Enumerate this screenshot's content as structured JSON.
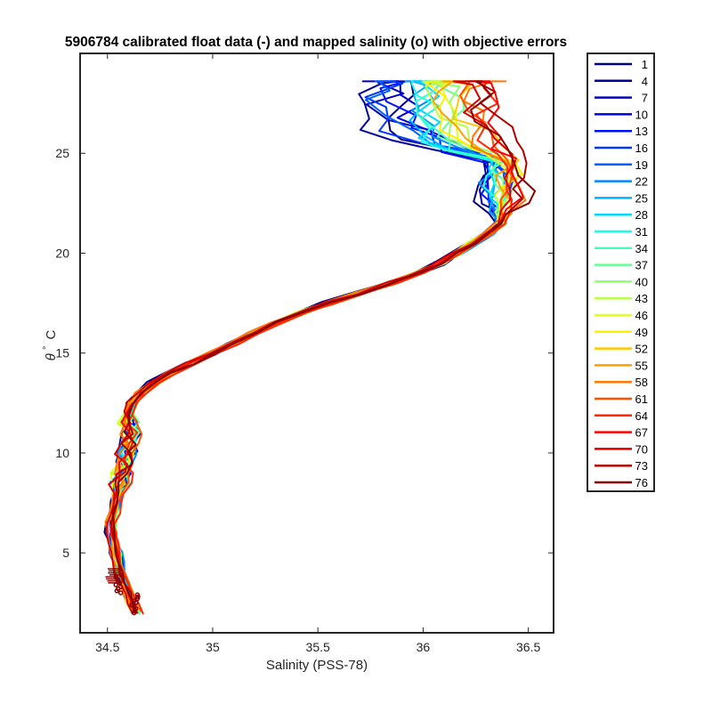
{
  "chart_data": {
    "type": "line",
    "title": "5906784 calibrated float data (-) and mapped salinity (o) with objective errors",
    "xlabel": "Salinity (PSS-78)",
    "ylabel_symbol": "θ",
    "ylabel_degree": "°",
    "ylabel_unit": "C",
    "xlim": [
      34.37,
      36.62
    ],
    "ylim": [
      1.0,
      30.0
    ],
    "x_ticks": [
      34.5,
      35,
      35.5,
      36,
      36.5
    ],
    "x_tick_labels": [
      "34.5",
      "35",
      "35.5",
      "36",
      "36.5"
    ],
    "y_ticks": [
      5,
      10,
      15,
      20,
      25
    ],
    "y_tick_labels": [
      "5",
      "10",
      "15",
      "20",
      "25"
    ],
    "grid": false,
    "legend_position": "outside-right",
    "colormap": "jet",
    "legend_entries": [
      "1",
      "4",
      "7",
      "10",
      "13",
      "16",
      "19",
      "22",
      "25",
      "28",
      "31",
      "34",
      "37",
      "40",
      "43",
      "46",
      "49",
      "52",
      "55",
      "58",
      "61",
      "64",
      "67",
      "70",
      "73",
      "76"
    ],
    "series_colors": [
      "#00008f",
      "#0000bf",
      "#0000ef",
      "#0020ff",
      "#0050ff",
      "#0080ff",
      "#00afff",
      "#00dfff",
      "#10ffef",
      "#40ffbf",
      "#70ff8f",
      "#9fff60",
      "#cfff30",
      "#ffff00",
      "#ffcf00",
      "#ff9f00",
      "#ff7000",
      "#ff4000",
      "#ff1000",
      "#df0000",
      "#af0000",
      "#800000",
      "#990000",
      "#b00000",
      "#c40000",
      "#800000"
    ],
    "series_colors_legend": [
      "#00007f",
      "#00009b",
      "#0000b7",
      "#0000d7",
      "#0010ff",
      "#0038ff",
      "#0060ff",
      "#0088ff",
      "#00b0ff",
      "#00d8ff",
      "#18ffe7",
      "#40ffbf",
      "#68ff97",
      "#90ff6f",
      "#b8ff47",
      "#e0ff1f",
      "#ffee00",
      "#ffc800",
      "#ffa000",
      "#ff7800",
      "#ff5000",
      "#ff2800",
      "#ff0000",
      "#d70000",
      "#af0000",
      "#870000"
    ],
    "envelope": {
      "description_free": true,
      "x": [
        34.64,
        34.62,
        34.6,
        34.58,
        34.56,
        34.55,
        34.54,
        34.53,
        34.52,
        34.52,
        34.53,
        34.54,
        34.55,
        34.56,
        34.57,
        34.58,
        34.59,
        34.6,
        34.61,
        34.6,
        34.6,
        34.62,
        34.66,
        34.72,
        34.8,
        34.9,
        35.0,
        35.1,
        35.2,
        35.3,
        35.42,
        35.55,
        35.7,
        35.85,
        35.98,
        36.08,
        36.16,
        36.24,
        36.31,
        36.37,
        36.41,
        36.43,
        36.42,
        36.38,
        36.32,
        36.24,
        36.14,
        36.02
      ],
      "y": [
        2.0,
        2.5,
        3.0,
        3.5,
        4.0,
        4.5,
        5.0,
        5.5,
        6.0,
        6.5,
        7.0,
        7.5,
        8.0,
        8.5,
        9.0,
        9.5,
        10.0,
        10.5,
        11.0,
        11.5,
        12.0,
        12.5,
        13.0,
        13.5,
        14.0,
        14.5,
        15.0,
        15.5,
        16.0,
        16.5,
        17.0,
        17.5,
        18.0,
        18.5,
        19.0,
        19.5,
        20.0,
        20.5,
        21.0,
        21.5,
        22.5,
        23.5,
        24.5,
        25.5,
        26.3,
        26.9,
        27.2,
        27.4
      ]
    }
  }
}
